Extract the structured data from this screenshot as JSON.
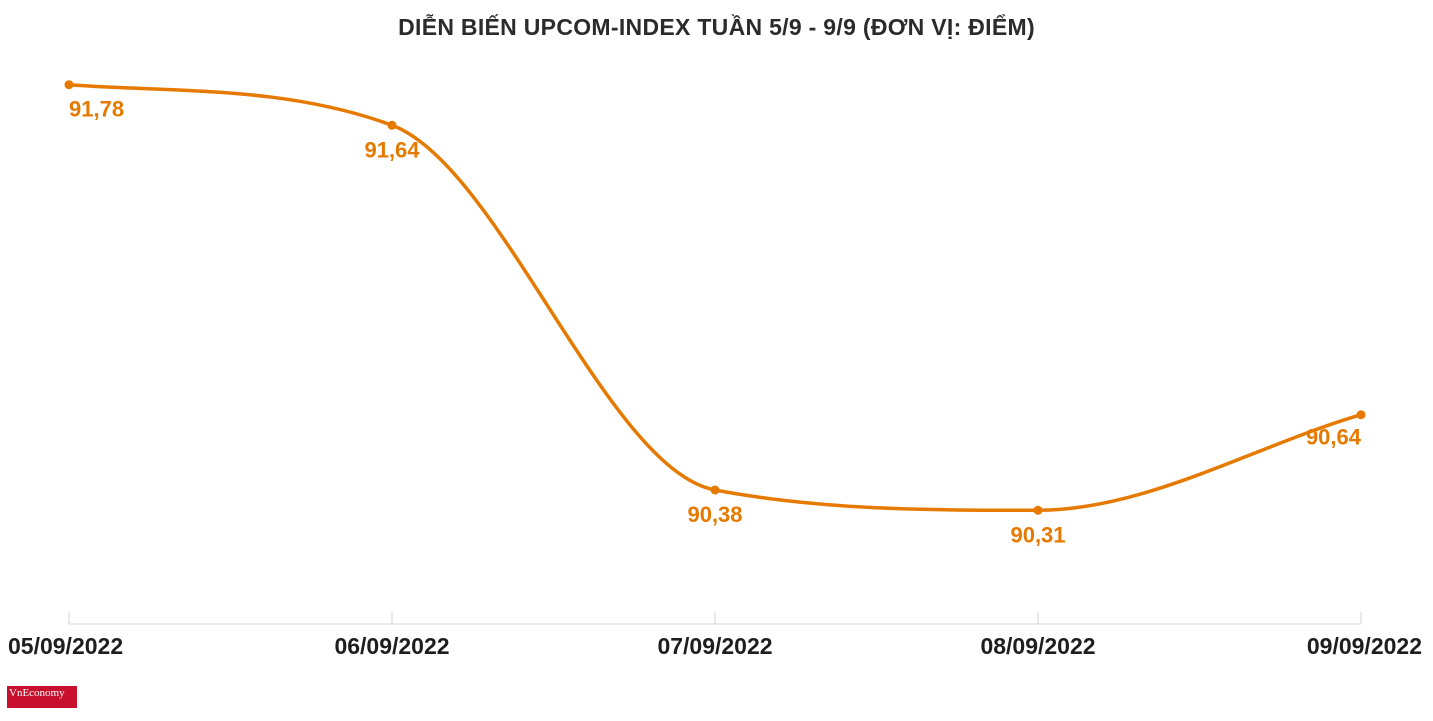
{
  "chart_data": {
    "type": "line",
    "title": "DIỄN BIẾN UPCOM-INDEX TUẦN 5/9 - 9/9 (ĐƠN VỊ: ĐIỂM)",
    "categories": [
      "05/09/2022",
      "06/09/2022",
      "07/09/2022",
      "08/09/2022",
      "09/09/2022"
    ],
    "values": [
      91.78,
      91.64,
      90.38,
      90.31,
      90.64
    ],
    "data_labels": [
      "91,78",
      "91,64",
      "90,38",
      "90,31",
      "90,64"
    ],
    "xlabel": "",
    "ylabel": "",
    "ylim": [
      90.0,
      91.9
    ],
    "grid": false,
    "line_color": "#e67a00"
  },
  "logo": {
    "text": "VnEconomy"
  }
}
